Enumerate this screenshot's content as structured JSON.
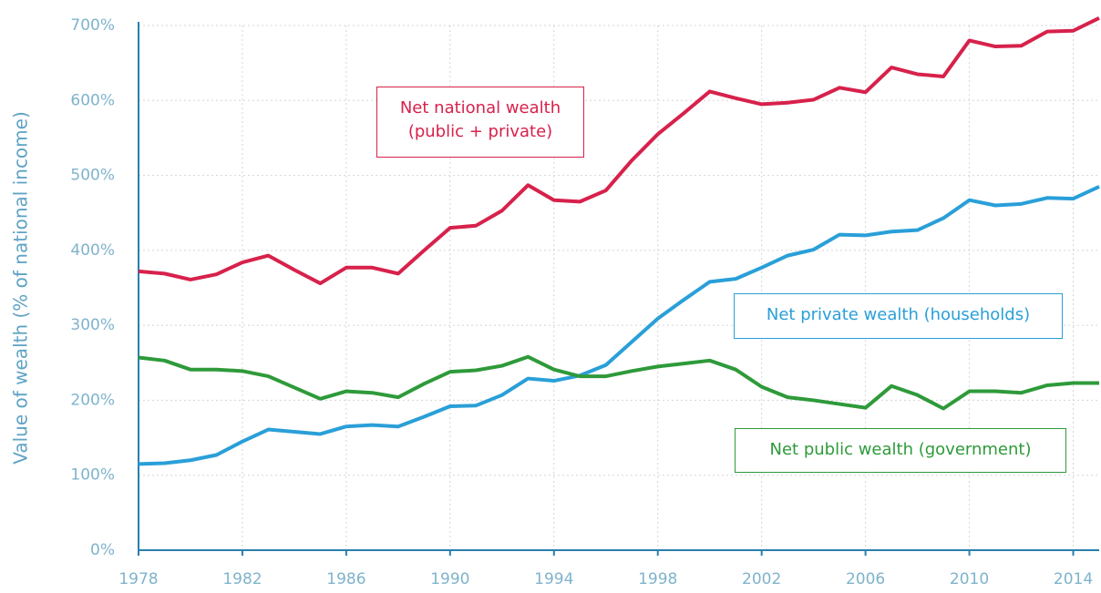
{
  "chart_data": {
    "type": "line",
    "ylabel": "Value of wealth (% of national income)",
    "x": [
      1978,
      1979,
      1980,
      1981,
      1982,
      1983,
      1984,
      1985,
      1986,
      1987,
      1988,
      1989,
      1990,
      1991,
      1992,
      1993,
      1994,
      1995,
      1996,
      1997,
      1998,
      1999,
      2000,
      2001,
      2002,
      2003,
      2004,
      2005,
      2006,
      2007,
      2008,
      2009,
      2010,
      2011,
      2012,
      2013,
      2014,
      2015
    ],
    "series": [
      {
        "name": "Net national wealth (public + private)",
        "color": "#d7214b",
        "values": [
          372,
          369,
          361,
          368,
          384,
          393,
          374,
          356,
          377,
          377,
          369,
          400,
          430,
          433,
          453,
          487,
          467,
          465,
          480,
          520,
          555,
          583,
          612,
          603,
          595,
          597,
          601,
          617,
          611,
          644,
          635,
          632,
          680,
          672,
          673,
          692,
          693,
          710
        ]
      },
      {
        "name": "Net private wealth (households)",
        "color": "#2a9fd8",
        "values": [
          115,
          116,
          120,
          127,
          145,
          161,
          158,
          155,
          165,
          167,
          165,
          178,
          192,
          193,
          207,
          229,
          226,
          233,
          247,
          278,
          309,
          334,
          358,
          362,
          377,
          393,
          401,
          421,
          420,
          425,
          427,
          443,
          467,
          460,
          462,
          470,
          469,
          485
        ]
      },
      {
        "name": "Net public wealth (government)",
        "color": "#2e9a3a",
        "values": [
          257,
          253,
          241,
          241,
          239,
          232,
          217,
          202,
          212,
          210,
          204,
          222,
          238,
          240,
          246,
          258,
          241,
          232,
          232,
          239,
          245,
          249,
          253,
          241,
          218,
          204,
          200,
          195,
          190,
          219,
          207,
          189,
          212,
          212,
          210,
          220,
          223,
          223
        ]
      }
    ],
    "xlim": [
      1978,
      2015
    ],
    "xticks": [
      1978,
      1982,
      1986,
      1990,
      1994,
      1998,
      2002,
      2006,
      2010,
      2014
    ],
    "ylim": [
      0,
      700
    ],
    "yticks": [
      {
        "value": 0,
        "label": "0%"
      },
      {
        "value": 100,
        "label": "100%"
      },
      {
        "value": 200,
        "label": "200%"
      },
      {
        "value": 300,
        "label": "300%"
      },
      {
        "value": 400,
        "label": "400%"
      },
      {
        "value": 500,
        "label": "500%"
      },
      {
        "value": 600,
        "label": "600%"
      },
      {
        "value": 700,
        "label": "700%"
      }
    ],
    "grid": true
  }
}
